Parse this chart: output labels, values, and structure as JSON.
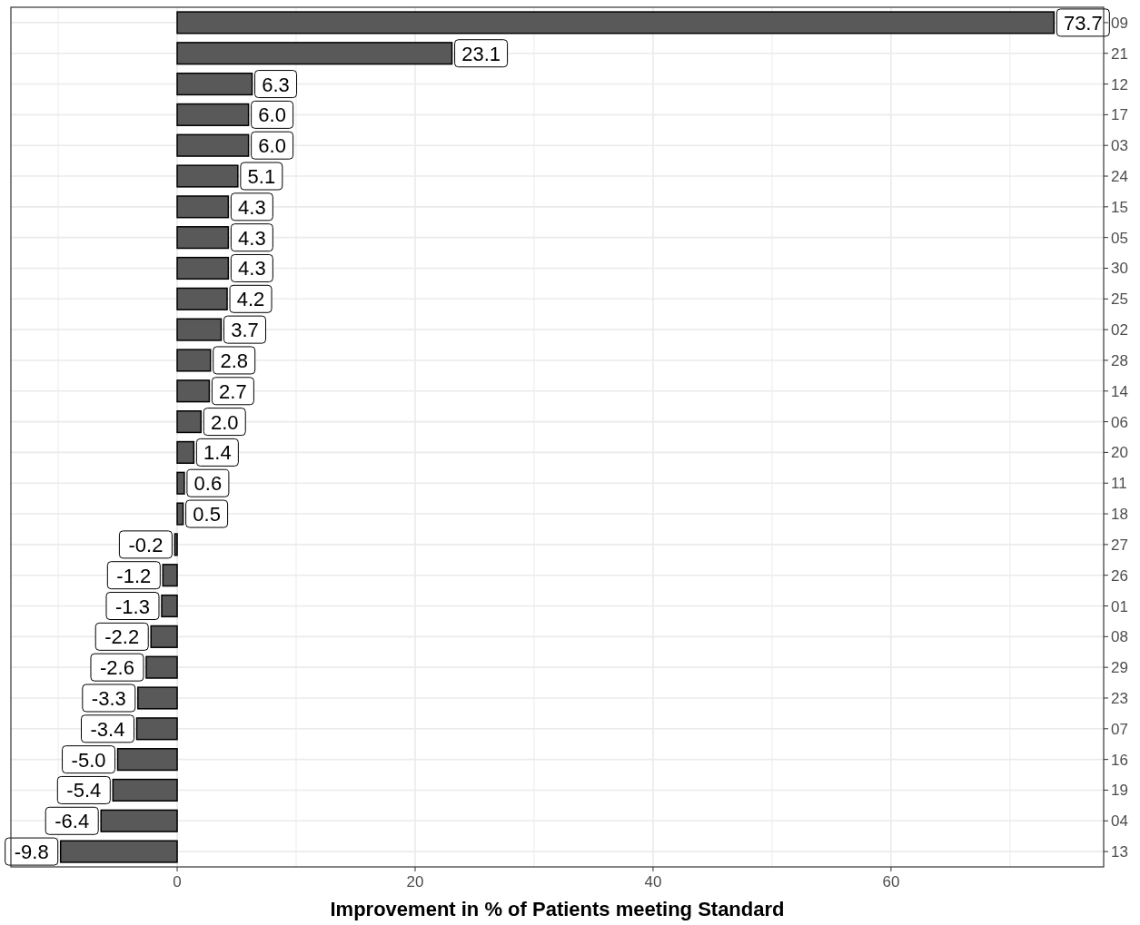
{
  "chart_data": {
    "type": "bar",
    "orientation": "horizontal",
    "xlabel": "Improvement in % of Patients meeting Standard",
    "categories": [
      "09",
      "21",
      "12",
      "17",
      "03",
      "24",
      "15",
      "05",
      "30",
      "25",
      "02",
      "28",
      "14",
      "06",
      "20",
      "11",
      "18",
      "27",
      "26",
      "01",
      "08",
      "29",
      "23",
      "07",
      "16",
      "19",
      "04",
      "13"
    ],
    "values": [
      73.7,
      23.1,
      6.3,
      6.0,
      6.0,
      5.1,
      4.3,
      4.3,
      4.3,
      4.2,
      3.7,
      2.8,
      2.7,
      2.0,
      1.4,
      0.6,
      0.5,
      -0.2,
      -1.2,
      -1.3,
      -2.2,
      -2.6,
      -3.3,
      -3.4,
      -5.0,
      -5.4,
      -6.4,
      -9.8
    ],
    "value_labels": [
      "73.7",
      "23.1",
      "6.3",
      "6.0",
      "6.0",
      "5.1",
      "4.3",
      "4.3",
      "4.3",
      "4.2",
      "3.7",
      "2.8",
      "2.7",
      "2.0",
      "1.4",
      "0.6",
      "0.5",
      "-0.2",
      "-1.2",
      "-1.3",
      "-2.2",
      "-2.6",
      "-3.3",
      "-3.4",
      "-5.0",
      "-5.4",
      "-6.4",
      "-9.8"
    ],
    "color": "#595959",
    "xlim": [
      -13.975,
      77.875
    ],
    "xticks": [
      {
        "value": -10,
        "label": null
      },
      0,
      {
        "value": 10,
        "label": null
      },
      20,
      {
        "value": 30,
        "label": null
      },
      40,
      {
        "value": 50,
        "label": null
      },
      60,
      {
        "value": 70,
        "label": null
      }
    ],
    "grid": true
  }
}
